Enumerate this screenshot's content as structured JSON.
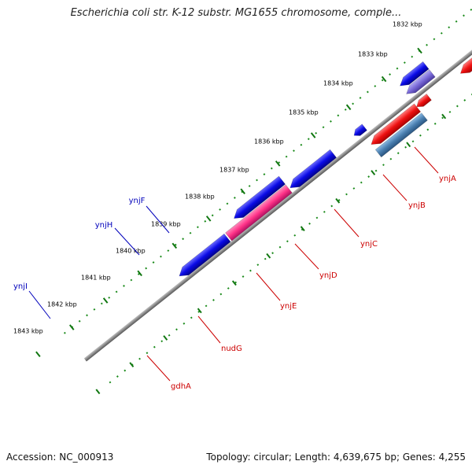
{
  "title": "Escherichia coli str. K-12 substr. MG1655 chromosome, comple...",
  "footer": {
    "accession": "Accession: NC_000913",
    "summary": "Topology: circular; Length: 4,639,675 bp; Genes: 4,255"
  },
  "ticks": [
    "1832 kbp",
    "1833 kbp",
    "1834 kbp",
    "1835 kbp",
    "1836 kbp",
    "1837 kbp",
    "1838 kbp",
    "1839 kbp",
    "1840 kbp",
    "1841 kbp",
    "1842 kbp",
    "1843 kbp"
  ],
  "genes": [
    {
      "name": "ynjA",
      "color": "#cc0000"
    },
    {
      "name": "ynjB",
      "color": "#cc0000"
    },
    {
      "name": "ynjC",
      "color": "#cc0000"
    },
    {
      "name": "ynjD",
      "color": "#cc0000"
    },
    {
      "name": "ynjE",
      "color": "#cc0000"
    },
    {
      "name": "nudG",
      "color": "#cc0000"
    },
    {
      "name": "gdhA",
      "color": "#cc0000"
    },
    {
      "name": "ynjF",
      "color": "#0000bb"
    },
    {
      "name": "ynjH",
      "color": "#0000bb"
    },
    {
      "name": "ynjI",
      "color": "#0000bb"
    }
  ],
  "colors": {
    "backbone": "#8a8a8a",
    "tick_dots": "#1a8a1a",
    "forward_gene": "#ee1111",
    "reverse_gene": "#0a0ae6",
    "gray_gene": "#6f6f6f",
    "light_gray_gene": "#c8c8c8",
    "slate_gene": "#4a4a8a",
    "steel_gene": "#4a7fb0",
    "lavender_gene": "#7a6ad8",
    "pink_gene": "#ff3388"
  }
}
